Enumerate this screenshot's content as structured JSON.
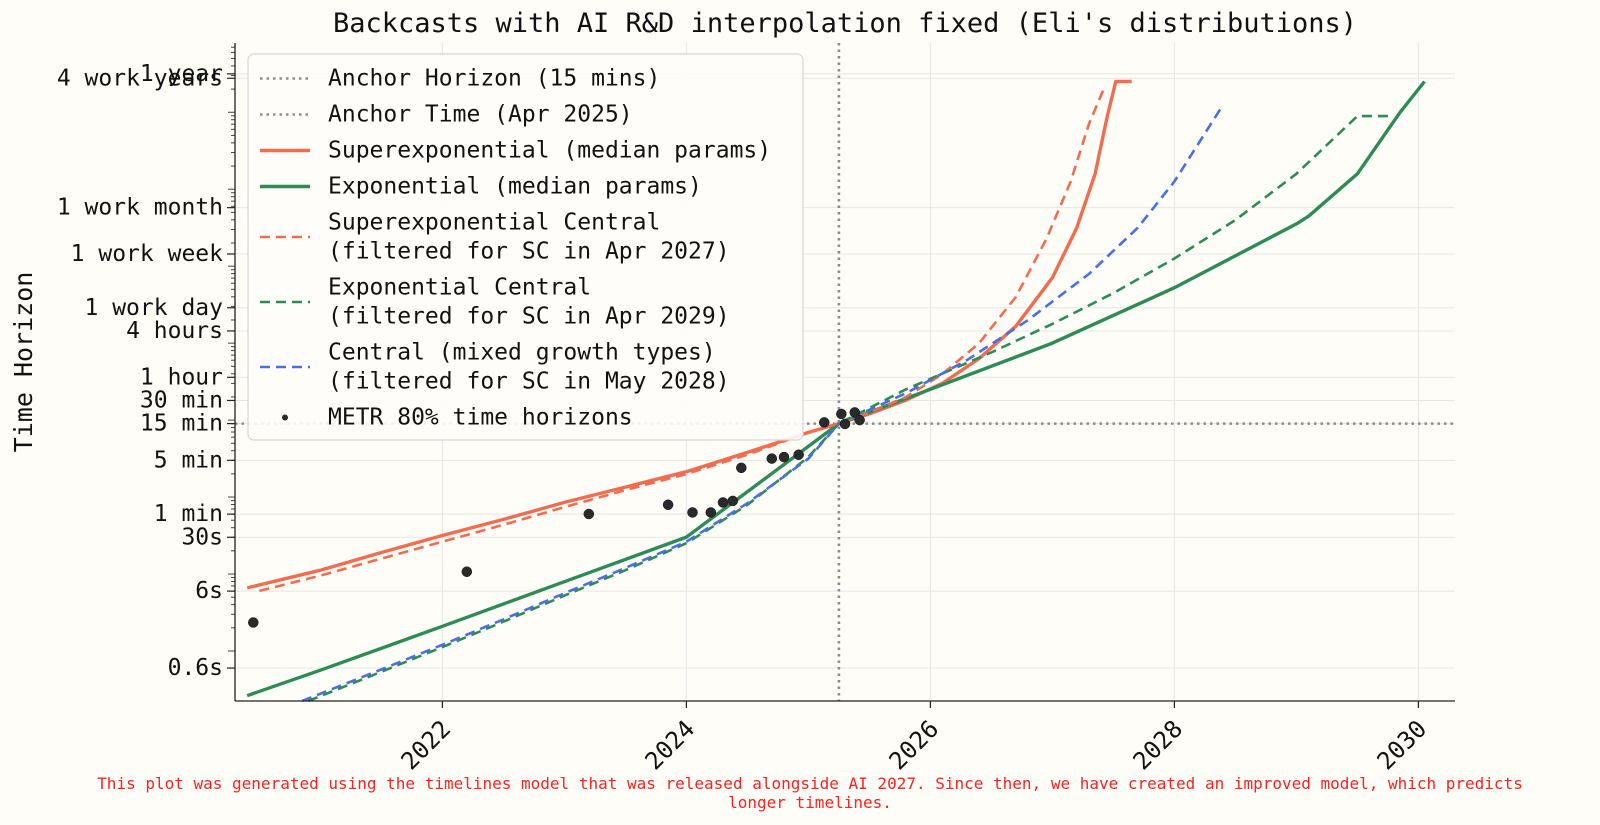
{
  "chart_data": {
    "type": "line",
    "title": "Backcasts with AI R&D interpolation fixed (Eli's distributions)",
    "xlabel": "",
    "ylabel": "Time Horizon",
    "xlim": [
      2020.3,
      2030.3
    ],
    "ylim_log10_seconds": [
      -0.65,
      7.9
    ],
    "x_ticks": [
      2022,
      2024,
      2026,
      2028,
      2030
    ],
    "x_tick_labels": [
      "2022",
      "2024",
      "2026",
      "2028",
      "2030"
    ],
    "y_ticks": [
      {
        "label": "0.6s",
        "seconds": 0.6
      },
      {
        "label": "6s",
        "seconds": 6
      },
      {
        "label": "30s",
        "seconds": 30
      },
      {
        "label": "1 min",
        "seconds": 60
      },
      {
        "label": "5 min",
        "seconds": 300
      },
      {
        "label": "15 min",
        "seconds": 900
      },
      {
        "label": "30 min",
        "seconds": 1800
      },
      {
        "label": "1 hour",
        "seconds": 3600
      },
      {
        "label": "4 hours",
        "seconds": 14400
      },
      {
        "label": "1 work day",
        "seconds": 28800
      },
      {
        "label": "1 work week",
        "seconds": 144000
      },
      {
        "label": "1 work month",
        "seconds": 576000
      },
      {
        "label": "1 year",
        "seconds": 31536000
      },
      {
        "label": "4 work years",
        "seconds": 27648000
      }
    ],
    "anchors": {
      "horizon_seconds": 900,
      "time": 2025.25
    },
    "legend_position": "top-left",
    "legend": [
      "Anchor Horizon (15 mins)",
      "Anchor Time (Apr 2025)",
      "Superexponential (median params)",
      "Exponential (median params)",
      [
        "Superexponential Central",
        "(filtered for SC in Apr 2027)"
      ],
      [
        "Exponential Central",
        "(filtered for SC in Apr 2029)"
      ],
      [
        "Central (mixed growth types)",
        "(filtered for SC in May 2028)"
      ],
      "METR 80% time horizons"
    ],
    "series": [
      {
        "name": "Superexponential (median params)",
        "style": "solid",
        "color": "#f26c50",
        "x": [
          2020.4,
          2021.0,
          2021.5,
          2022.0,
          2022.5,
          2023.0,
          2023.5,
          2024.0,
          2024.5,
          2025.0,
          2025.25,
          2025.5,
          2025.8,
          2026.1,
          2026.4,
          2026.7,
          2027.0,
          2027.2,
          2027.35,
          2027.45,
          2027.52,
          2027.65
        ],
        "y": [
          0.82,
          1.05,
          1.28,
          1.5,
          1.71,
          1.93,
          2.13,
          2.33,
          2.58,
          2.84,
          2.954,
          3.08,
          3.26,
          3.48,
          3.8,
          4.22,
          4.85,
          5.5,
          6.2,
          6.95,
          7.4,
          7.4
        ]
      },
      {
        "name": "Exponential (median params)",
        "style": "solid",
        "color": "#2e8b57",
        "x": [
          2020.4,
          2021.0,
          2022.0,
          2023.0,
          2024.0,
          2025.25,
          2026.0,
          2027.0,
          2028.0,
          2029.0,
          2029.1,
          2029.5,
          2029.85,
          2030.05
        ],
        "y": [
          -0.58,
          -0.25,
          0.32,
          0.9,
          1.48,
          2.954,
          3.4,
          4.0,
          4.72,
          5.55,
          5.65,
          6.2,
          7.0,
          7.4
        ]
      },
      {
        "name": "Superexponential Central (filtered for SC in Apr 2027)",
        "style": "dashed",
        "color": "#f26c50",
        "x": [
          2020.5,
          2021.0,
          2021.5,
          2022.0,
          2022.5,
          2023.0,
          2023.5,
          2024.0,
          2024.5,
          2025.0,
          2025.25,
          2025.5,
          2025.8,
          2026.1,
          2026.4,
          2026.7,
          2026.95,
          2027.15,
          2027.3,
          2027.42
        ],
        "y": [
          0.78,
          0.98,
          1.2,
          1.42,
          1.64,
          1.87,
          2.09,
          2.3,
          2.55,
          2.84,
          2.954,
          3.1,
          3.3,
          3.6,
          4.0,
          4.6,
          5.35,
          6.1,
          6.85,
          7.3
        ]
      },
      {
        "name": "Exponential Central (filtered for SC in Apr 2029)",
        "style": "dashed",
        "color": "#2e8b57",
        "x": [
          2020.9,
          2021.5,
          2022.0,
          2022.5,
          2023.0,
          2023.5,
          2024.0,
          2024.5,
          2025.0,
          2025.25,
          2025.8,
          2026.5,
          2027.0,
          2027.5,
          2028.0,
          2028.5,
          2029.0,
          2029.5,
          2029.8
        ],
        "y": [
          -0.65,
          -0.27,
          0.05,
          0.38,
          0.72,
          1.05,
          1.4,
          1.9,
          2.52,
          2.954,
          3.4,
          3.88,
          4.25,
          4.65,
          5.1,
          5.6,
          6.2,
          6.95,
          6.95
        ]
      },
      {
        "name": "Central (mixed growth types) (filtered for SC in May 2028)",
        "style": "dashed",
        "color": "#4a6fe0",
        "x": [
          2020.85,
          2021.5,
          2022.0,
          2022.5,
          2023.0,
          2023.5,
          2024.0,
          2024.5,
          2025.0,
          2025.25,
          2025.8,
          2026.3,
          2026.8,
          2027.3,
          2027.7,
          2028.0,
          2028.2,
          2028.4
        ],
        "y": [
          -0.65,
          -0.24,
          0.08,
          0.41,
          0.75,
          1.08,
          1.42,
          1.92,
          2.5,
          2.954,
          3.35,
          3.78,
          4.3,
          4.9,
          5.5,
          6.1,
          6.6,
          7.1
        ]
      }
    ],
    "metr_points": {
      "name": "METR 80% time horizons",
      "x": [
        2020.45,
        2022.2,
        2023.2,
        2023.85,
        2024.05,
        2024.2,
        2024.3,
        2024.38,
        2024.45,
        2024.7,
        2024.8,
        2024.92,
        2025.13,
        2025.27,
        2025.3,
        2025.38,
        2025.42
      ],
      "y": [
        0.37,
        1.03,
        1.78,
        1.9,
        1.8,
        1.8,
        1.93,
        1.95,
        2.38,
        2.5,
        2.52,
        2.55,
        2.97,
        3.08,
        2.95,
        3.1,
        3.0
      ]
    },
    "colors": {
      "superexponential": "#f26c50",
      "exponential": "#2e8b57",
      "central": "#4a6fe0",
      "anchor": "#8c8c8c",
      "points": "#2a2a2a"
    }
  },
  "footer_note": {
    "line1": "This plot was generated using the timelines model that was released alongside AI 2027. Since then, we have created an improved model, which predicts",
    "line2": "longer timelines.",
    "color": "#ff2020"
  }
}
